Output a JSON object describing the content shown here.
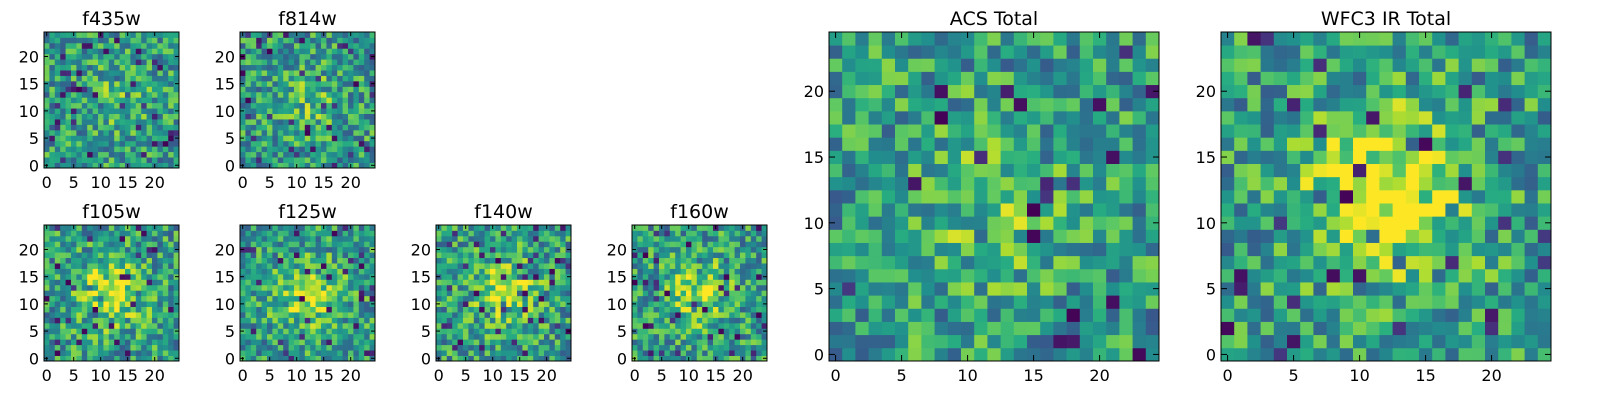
{
  "figure": {
    "colormap": "viridis"
  },
  "chart_data": [
    {
      "id": "f435w",
      "type": "heatmap",
      "title": "f435w",
      "grid_size": [
        25,
        25
      ],
      "xlim": [
        0,
        25
      ],
      "ylim": [
        0,
        25
      ],
      "xticks": [
        0,
        5,
        10,
        15,
        20
      ],
      "yticks": [
        0,
        5,
        10,
        15,
        20
      ],
      "seed": 11,
      "blob_strength": 0.15
    },
    {
      "id": "f814w",
      "type": "heatmap",
      "title": "f814w",
      "grid_size": [
        25,
        25
      ],
      "xlim": [
        0,
        25
      ],
      "ylim": [
        0,
        25
      ],
      "xticks": [
        0,
        5,
        10,
        15,
        20
      ],
      "yticks": [
        0,
        5,
        10,
        15,
        20
      ],
      "seed": 23,
      "blob_strength": 0.15
    },
    {
      "id": "f105w",
      "type": "heatmap",
      "title": "f105w",
      "grid_size": [
        25,
        25
      ],
      "xlim": [
        0,
        25
      ],
      "ylim": [
        0,
        25
      ],
      "xticks": [
        0,
        5,
        10,
        15,
        20
      ],
      "yticks": [
        0,
        5,
        10,
        15,
        20
      ],
      "seed": 37,
      "blob_strength": 0.35
    },
    {
      "id": "f125w",
      "type": "heatmap",
      "title": "f125w",
      "grid_size": [
        25,
        25
      ],
      "xlim": [
        0,
        25
      ],
      "ylim": [
        0,
        25
      ],
      "xticks": [
        0,
        5,
        10,
        15,
        20
      ],
      "yticks": [
        0,
        5,
        10,
        15,
        20
      ],
      "seed": 41,
      "blob_strength": 0.3
    },
    {
      "id": "f140w",
      "type": "heatmap",
      "title": "f140w",
      "grid_size": [
        25,
        25
      ],
      "xlim": [
        0,
        25
      ],
      "ylim": [
        0,
        25
      ],
      "xticks": [
        0,
        5,
        10,
        15,
        20
      ],
      "yticks": [
        0,
        5,
        10,
        15,
        20
      ],
      "seed": 53,
      "blob_strength": 0.3
    },
    {
      "id": "f160w",
      "type": "heatmap",
      "title": "f160w",
      "grid_size": [
        25,
        25
      ],
      "xlim": [
        0,
        25
      ],
      "ylim": [
        0,
        25
      ],
      "xticks": [
        0,
        5,
        10,
        15,
        20
      ],
      "yticks": [
        0,
        5,
        10,
        15,
        20
      ],
      "seed": 67,
      "blob_strength": 0.3
    },
    {
      "id": "acs-total",
      "type": "heatmap",
      "title": "ACS Total",
      "grid_size": [
        25,
        25
      ],
      "xlim": [
        0,
        25
      ],
      "ylim": [
        0,
        25
      ],
      "xticks": [
        0,
        5,
        10,
        15,
        20
      ],
      "yticks": [
        0,
        5,
        10,
        15,
        20
      ],
      "seed": 79,
      "blob_strength": 0.2
    },
    {
      "id": "wfc3-ir-total",
      "type": "heatmap",
      "title": "WFC3 IR Total",
      "grid_size": [
        25,
        25
      ],
      "xlim": [
        0,
        25
      ],
      "ylim": [
        0,
        25
      ],
      "xticks": [
        0,
        5,
        10,
        15,
        20
      ],
      "yticks": [
        0,
        5,
        10,
        15,
        20
      ],
      "seed": 97,
      "blob_strength": 0.45
    }
  ]
}
